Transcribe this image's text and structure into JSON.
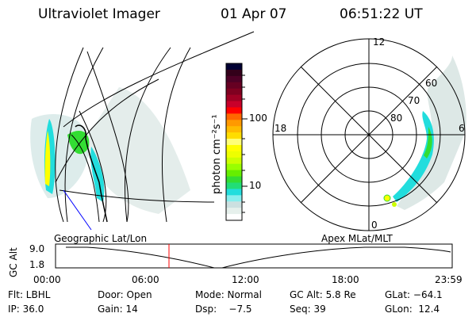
{
  "header": {
    "instrument": "Ultraviolet Imager",
    "date": "01 Apr 07",
    "time": "06:51:22 UT"
  },
  "colorbar": {
    "unit_label": "photon cm⁻²s⁻¹",
    "tick_labels": [
      "100",
      "10"
    ],
    "colors": [
      "#000033",
      "#33001a",
      "#4d0026",
      "#660022",
      "#800020",
      "#a00024",
      "#c8002a",
      "#ff0000",
      "#ff6600",
      "#ff9900",
      "#ffbb00",
      "#ffdd00",
      "#ffff77",
      "#ffff00",
      "#eeff00",
      "#ccff00",
      "#99ff00",
      "#66ee00",
      "#33dd33",
      "#22dd77",
      "#22dddd",
      "#88eeee",
      "#cce0e0",
      "#e6f0ec",
      "#ffffff"
    ]
  },
  "polar": {
    "mlt_labels": {
      "top": "12",
      "left": "18",
      "right": "6",
      "bottom": "0"
    },
    "lat_labels": [
      "80",
      "70",
      "60"
    ]
  },
  "timeline": {
    "left_title": "Geographic Lat/Lon",
    "right_title": "Apex MLat/MLT",
    "y_label": "GC Alt",
    "y_ticks": [
      "9.0",
      "1.8"
    ],
    "x_ticks": [
      "00:00",
      "06:00",
      "12:00",
      "18:00",
      "23:59"
    ],
    "current_time_fraction": 0.286,
    "marker_color": "#ff0000"
  },
  "info": {
    "row1": [
      "Flt: LBHL",
      "Door: Open",
      "Mode: Normal",
      "GC Alt: 5.8 Re",
      "GLat: −64.1"
    ],
    "row2": [
      "IP: 36.0",
      "Gain: 14",
      "Dsp:    −7.5",
      "Seq: 39",
      "GLon:  12.4"
    ]
  }
}
